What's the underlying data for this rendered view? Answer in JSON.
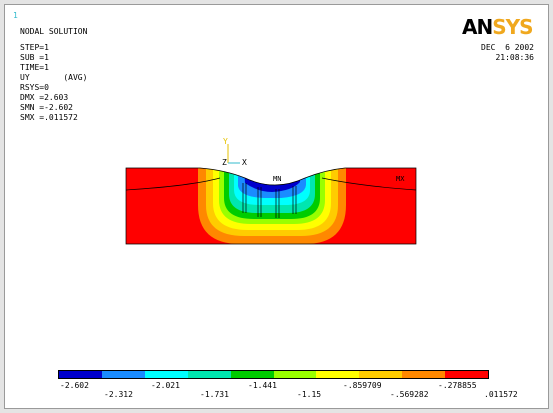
{
  "window": {
    "number": "1"
  },
  "title": "NODAL SOLUTION",
  "info": {
    "step": "STEP=1",
    "sub": "SUB =1",
    "time": "TIME=1",
    "result": "UY       (AVG)",
    "rsys": "RSYS=0",
    "dmx": "DMX =2.603",
    "smn": "SMN =-2.602",
    "smx": "SMX =.011572"
  },
  "logo": {
    "part1": "AN",
    "part2": "SYS"
  },
  "timestamp": {
    "date": "DEC  6 2002",
    "time": "21:08:36"
  },
  "axes": {
    "y": "Y",
    "z": "Z",
    "x": "X"
  },
  "markers": {
    "min": "MN",
    "max": "MX"
  },
  "colors": {
    "c1": "#0000cc",
    "c2": "#1a8cff",
    "c3": "#00ffff",
    "c4": "#00e6b0",
    "c5": "#00cc00",
    "c6": "#99ff00",
    "c7": "#ffff00",
    "c8": "#ffcc00",
    "c9": "#ff8800",
    "c10": "#ff0000"
  },
  "legend": {
    "top": [
      "-2.602",
      "-2.021",
      "-1.441",
      "-.859709",
      "-.278855"
    ],
    "bottom": [
      "-2.312",
      "-1.731",
      "-1.15",
      "-.569282",
      ".011572"
    ]
  }
}
